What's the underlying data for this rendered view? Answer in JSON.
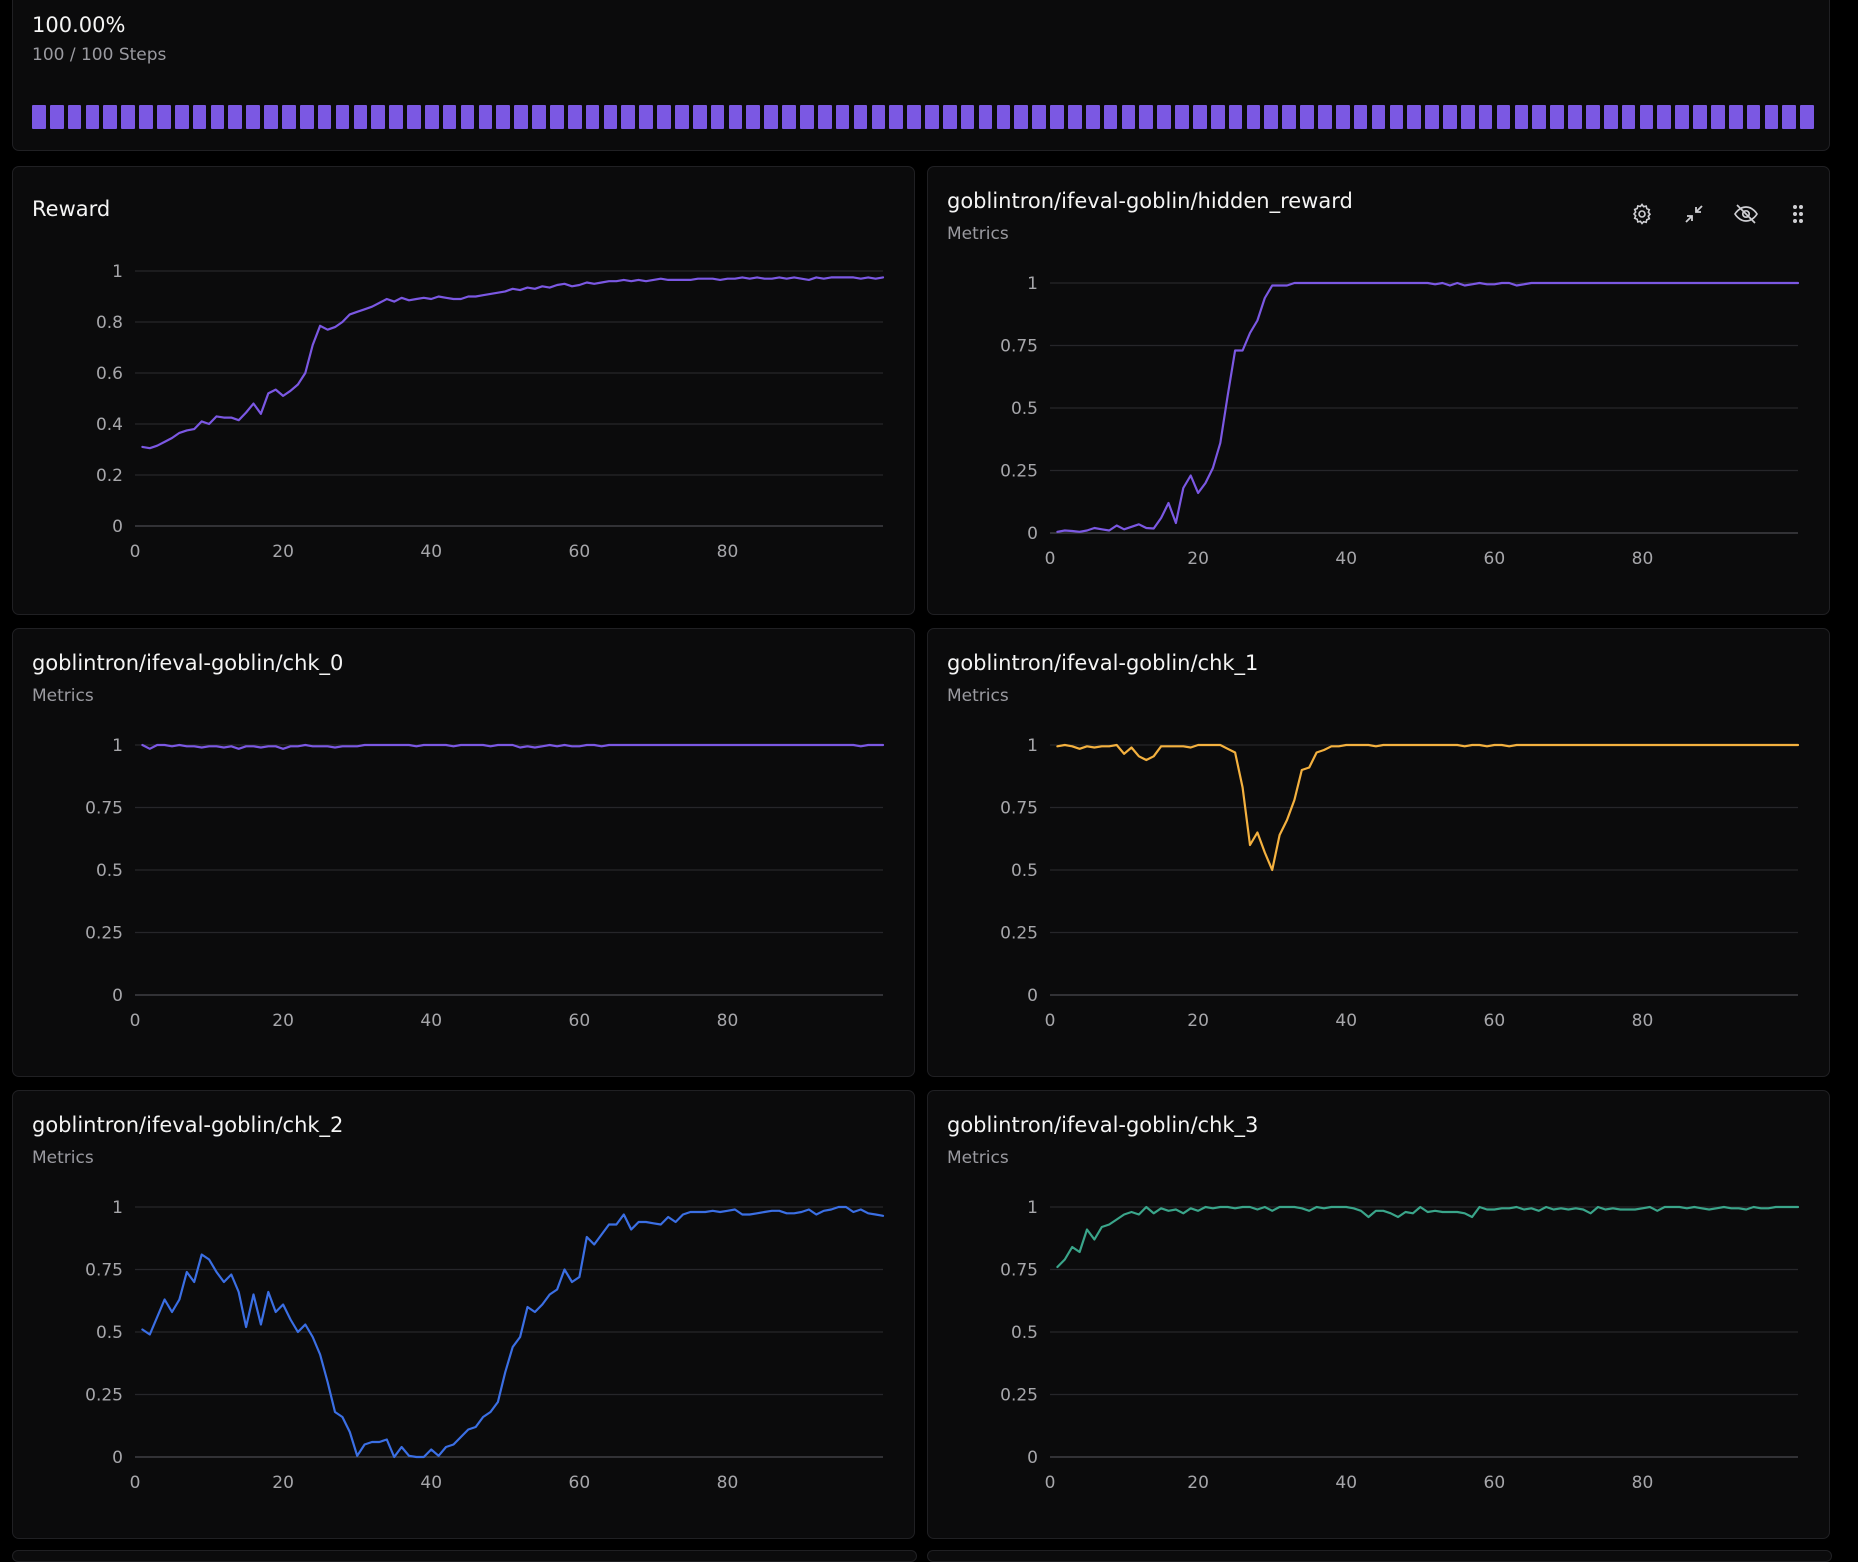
{
  "progress": {
    "percent_label": "100.00%",
    "steps_label": "100 / 100 Steps",
    "completed": 100,
    "total": 100,
    "color": "#7b58e3"
  },
  "colors": {
    "grid": "#26262a",
    "axis": "#4a4a4f",
    "tick_text": "#a6a6aa"
  },
  "toolbar": {
    "icons": [
      "gear-icon",
      "collapse-icon",
      "eye-off-icon",
      "drag-handle-icon"
    ]
  },
  "charts": [
    {
      "title": "Reward",
      "subtitle": "",
      "color": "#7b58e3"
    },
    {
      "title": "goblintron/ifeval-goblin/hidden_reward",
      "subtitle": "Metrics",
      "color": "#7b58e3"
    },
    {
      "title": "goblintron/ifeval-goblin/chk_0",
      "subtitle": "Metrics",
      "color": "#7b58e3"
    },
    {
      "title": "goblintron/ifeval-goblin/chk_1",
      "subtitle": "Metrics",
      "color": "#f4b13f"
    },
    {
      "title": "goblintron/ifeval-goblin/chk_2",
      "subtitle": "Metrics",
      "color": "#3b6fe4"
    },
    {
      "title": "goblintron/ifeval-goblin/chk_3",
      "subtitle": "Metrics",
      "color": "#3aa58a"
    }
  ],
  "chart_data": [
    {
      "type": "line",
      "title": "Reward",
      "xlabel": "",
      "ylabel": "",
      "xlim": [
        0,
        101
      ],
      "ylim": [
        0,
        1
      ],
      "x_ticks": [
        0,
        20,
        40,
        60,
        80
      ],
      "y_ticks": [
        0,
        0.2,
        0.4,
        0.6,
        0.8,
        1
      ],
      "y_tick_labels": [
        "0",
        "0.2",
        "0.4",
        "0.6",
        "0.8",
        "1"
      ],
      "grid": true,
      "series": [
        {
          "values": [
            0.31,
            0.305,
            0.315,
            0.33,
            0.345,
            0.365,
            0.375,
            0.38,
            0.41,
            0.4,
            0.43,
            0.425,
            0.425,
            0.415,
            0.445,
            0.48,
            0.44,
            0.52,
            0.535,
            0.51,
            0.53,
            0.555,
            0.6,
            0.71,
            0.785,
            0.77,
            0.78,
            0.8,
            0.83,
            0.84,
            0.85,
            0.86,
            0.875,
            0.89,
            0.88,
            0.895,
            0.885,
            0.89,
            0.895,
            0.89,
            0.9,
            0.895,
            0.89,
            0.89,
            0.9,
            0.9,
            0.905,
            0.91,
            0.915,
            0.92,
            0.93,
            0.925,
            0.935,
            0.93,
            0.94,
            0.935,
            0.945,
            0.95,
            0.94,
            0.945,
            0.955,
            0.95,
            0.955,
            0.96,
            0.96,
            0.965,
            0.96,
            0.965,
            0.96,
            0.965,
            0.97,
            0.965,
            0.965,
            0.965,
            0.965,
            0.97,
            0.97,
            0.97,
            0.965,
            0.97,
            0.97,
            0.975,
            0.97,
            0.975,
            0.97,
            0.97,
            0.975,
            0.97,
            0.975,
            0.97,
            0.965,
            0.975,
            0.97,
            0.975,
            0.975,
            0.975,
            0.975,
            0.97,
            0.975,
            0.97,
            0.975
          ]
        }
      ]
    },
    {
      "type": "line",
      "title": "goblintron/ifeval-goblin/hidden_reward",
      "xlabel": "",
      "ylabel": "",
      "xlim": [
        0,
        101
      ],
      "ylim": [
        0,
        1
      ],
      "x_ticks": [
        0,
        20,
        40,
        60,
        80
      ],
      "y_ticks": [
        0,
        0.25,
        0.5,
        0.75,
        1
      ],
      "y_tick_labels": [
        "0",
        "0.25",
        "0.5",
        "0.75",
        "1"
      ],
      "grid": true,
      "series": [
        {
          "values": [
            0.005,
            0.01,
            0.008,
            0.005,
            0.01,
            0.02,
            0.015,
            0.01,
            0.03,
            0.015,
            0.025,
            0.035,
            0.02,
            0.018,
            0.06,
            0.12,
            0.04,
            0.18,
            0.23,
            0.16,
            0.2,
            0.26,
            0.36,
            0.55,
            0.73,
            0.73,
            0.8,
            0.85,
            0.94,
            0.99,
            0.99,
            0.99,
            1,
            1,
            1,
            1,
            1,
            1,
            1,
            1,
            1,
            1,
            1,
            1,
            1,
            1,
            1,
            1,
            1,
            1,
            1,
            0.995,
            1,
            0.99,
            1,
            0.99,
            0.995,
            1,
            0.995,
            0.995,
            1,
            1,
            0.99,
            0.995,
            1,
            1,
            1,
            1,
            1,
            1,
            1,
            1,
            1,
            1,
            1,
            1,
            1,
            1,
            1,
            1,
            1,
            1,
            1,
            1,
            1,
            1,
            1,
            1,
            1,
            1,
            1,
            1,
            1,
            1,
            1,
            1,
            1,
            1,
            1,
            1,
            1
          ]
        }
      ]
    },
    {
      "type": "line",
      "title": "goblintron/ifeval-goblin/chk_0",
      "xlabel": "",
      "ylabel": "",
      "xlim": [
        0,
        101
      ],
      "ylim": [
        0,
        1
      ],
      "x_ticks": [
        0,
        20,
        40,
        60,
        80
      ],
      "y_ticks": [
        0,
        0.25,
        0.5,
        0.75,
        1
      ],
      "y_tick_labels": [
        "0",
        "0.25",
        "0.5",
        "0.75",
        "1"
      ],
      "grid": true,
      "series": [
        {
          "values": [
            1,
            0.985,
            1,
            1,
            0.995,
            1,
            0.995,
            0.995,
            0.99,
            0.995,
            0.995,
            0.99,
            0.995,
            0.985,
            0.995,
            0.995,
            0.99,
            0.995,
            0.995,
            0.985,
            0.995,
            0.995,
            1,
            0.995,
            0.995,
            0.995,
            0.99,
            0.995,
            0.995,
            0.995,
            1,
            1,
            1,
            1,
            1,
            1,
            1,
            0.995,
            1,
            1,
            1,
            1,
            0.995,
            1,
            1,
            1,
            1,
            0.995,
            1,
            1,
            1,
            0.99,
            0.995,
            0.99,
            0.995,
            1,
            0.995,
            1,
            0.995,
            0.995,
            1,
            1,
            0.995,
            1,
            1,
            1,
            1,
            1,
            1,
            1,
            1,
            1,
            1,
            1,
            1,
            1,
            1,
            1,
            1,
            1,
            1,
            1,
            1,
            1,
            1,
            1,
            1,
            1,
            1,
            1,
            1,
            1,
            1,
            1,
            1,
            1,
            1,
            0.995,
            1,
            1,
            1
          ]
        }
      ]
    },
    {
      "type": "line",
      "title": "goblintron/ifeval-goblin/chk_1",
      "xlabel": "",
      "ylabel": "",
      "xlim": [
        0,
        101
      ],
      "ylim": [
        0,
        1
      ],
      "x_ticks": [
        0,
        20,
        40,
        60,
        80
      ],
      "y_ticks": [
        0,
        0.25,
        0.5,
        0.75,
        1
      ],
      "y_tick_labels": [
        "0",
        "0.25",
        "0.5",
        "0.75",
        "1"
      ],
      "grid": true,
      "series": [
        {
          "values": [
            0.995,
            1,
            0.995,
            0.985,
            0.995,
            0.99,
            0.995,
            0.995,
            1,
            0.965,
            0.99,
            0.955,
            0.94,
            0.955,
            0.995,
            0.995,
            0.995,
            0.995,
            0.99,
            1,
            1,
            1,
            1,
            0.985,
            0.97,
            0.83,
            0.6,
            0.65,
            0.57,
            0.5,
            0.64,
            0.7,
            0.78,
            0.9,
            0.91,
            0.97,
            0.98,
            0.995,
            0.995,
            1,
            1,
            1,
            1,
            0.995,
            1,
            1,
            1,
            1,
            1,
            1,
            1,
            1,
            1,
            1,
            1,
            0.995,
            1,
            1,
            0.995,
            1,
            1,
            0.995,
            1,
            1,
            1,
            1,
            1,
            1,
            1,
            1,
            1,
            1,
            1,
            1,
            1,
            1,
            1,
            1,
            1,
            1,
            1,
            1,
            1,
            1,
            1,
            1,
            1,
            1,
            1,
            1,
            1,
            1,
            1,
            1,
            1,
            1,
            1,
            1,
            1,
            1,
            1
          ]
        }
      ]
    },
    {
      "type": "line",
      "title": "goblintron/ifeval-goblin/chk_2",
      "xlabel": "",
      "ylabel": "",
      "xlim": [
        0,
        101
      ],
      "ylim": [
        0,
        1
      ],
      "x_ticks": [
        0,
        20,
        40,
        60,
        80
      ],
      "y_ticks": [
        0,
        0.25,
        0.5,
        0.75,
        1
      ],
      "y_tick_labels": [
        "0",
        "0.25",
        "0.5",
        "0.75",
        "1"
      ],
      "grid": true,
      "series": [
        {
          "values": [
            0.51,
            0.49,
            0.56,
            0.63,
            0.58,
            0.63,
            0.74,
            0.7,
            0.81,
            0.79,
            0.74,
            0.7,
            0.73,
            0.66,
            0.52,
            0.65,
            0.53,
            0.66,
            0.58,
            0.61,
            0.55,
            0.5,
            0.53,
            0.48,
            0.41,
            0.3,
            0.18,
            0.16,
            0.1,
            0.005,
            0.05,
            0.06,
            0.06,
            0.07,
            0.0,
            0.04,
            0.005,
            0.0,
            0.0,
            0.03,
            0.005,
            0.04,
            0.05,
            0.08,
            0.11,
            0.12,
            0.16,
            0.18,
            0.22,
            0.34,
            0.44,
            0.48,
            0.6,
            0.58,
            0.61,
            0.65,
            0.67,
            0.75,
            0.7,
            0.72,
            0.88,
            0.85,
            0.89,
            0.93,
            0.93,
            0.97,
            0.91,
            0.94,
            0.94,
            0.935,
            0.93,
            0.96,
            0.94,
            0.97,
            0.98,
            0.98,
            0.98,
            0.985,
            0.98,
            0.985,
            0.99,
            0.97,
            0.97,
            0.975,
            0.98,
            0.985,
            0.985,
            0.975,
            0.975,
            0.98,
            0.99,
            0.97,
            0.985,
            0.99,
            1,
            1,
            0.98,
            0.99,
            0.975,
            0.97,
            0.965
          ]
        }
      ]
    },
    {
      "type": "line",
      "title": "goblintron/ifeval-goblin/chk_3",
      "xlabel": "",
      "ylabel": "",
      "xlim": [
        0,
        101
      ],
      "ylim": [
        0,
        1
      ],
      "x_ticks": [
        0,
        20,
        40,
        60,
        80
      ],
      "y_ticks": [
        0,
        0.25,
        0.5,
        0.75,
        1
      ],
      "y_tick_labels": [
        "0",
        "0.25",
        "0.5",
        "0.75",
        "1"
      ],
      "grid": true,
      "series": [
        {
          "values": [
            0.76,
            0.79,
            0.84,
            0.82,
            0.91,
            0.87,
            0.92,
            0.93,
            0.95,
            0.97,
            0.98,
            0.97,
            1,
            0.975,
            0.995,
            0.985,
            0.99,
            0.975,
            0.995,
            0.985,
            1,
            0.995,
            1,
            1,
            0.995,
            1,
            1,
            0.99,
            1,
            0.985,
            1,
            1,
            1,
            0.995,
            0.985,
            1,
            0.995,
            1,
            1,
            1,
            0.995,
            0.985,
            0.96,
            0.985,
            0.985,
            0.975,
            0.96,
            0.98,
            0.975,
            1,
            0.98,
            0.985,
            0.98,
            0.98,
            0.98,
            0.975,
            0.96,
            1,
            0.99,
            0.99,
            0.995,
            0.995,
            1,
            0.99,
            0.995,
            0.985,
            1,
            0.99,
            0.995,
            0.99,
            0.995,
            0.99,
            0.975,
            1,
            0.99,
            0.995,
            0.99,
            0.99,
            0.99,
            0.995,
            1,
            0.985,
            1,
            1,
            1,
            0.995,
            1,
            0.995,
            0.99,
            0.995,
            1,
            0.995,
            0.995,
            0.99,
            1,
            0.995,
            0.995,
            1,
            1,
            1,
            1
          ]
        }
      ]
    }
  ]
}
